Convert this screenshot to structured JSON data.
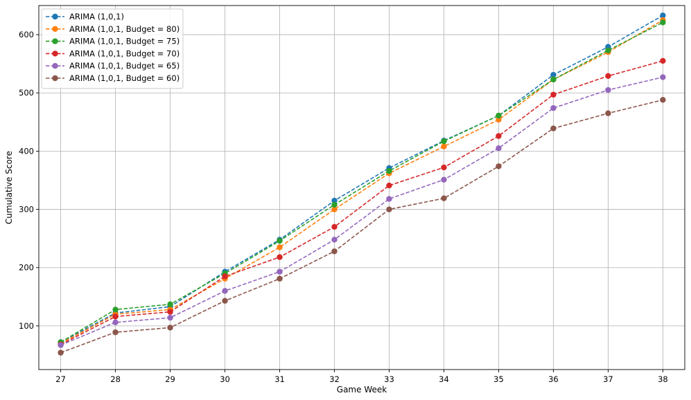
{
  "chart_data": {
    "type": "line",
    "title": "",
    "xlabel": "Game Week",
    "ylabel": "Cumulative Score",
    "x": [
      27,
      28,
      29,
      30,
      31,
      32,
      33,
      34,
      35,
      36,
      37,
      38
    ],
    "xlim": [
      26.6,
      38.4
    ],
    "ylim": [
      25,
      650
    ],
    "yticks": [
      100,
      200,
      300,
      400,
      500,
      600
    ],
    "grid": true,
    "legend_position": "top-left",
    "series": [
      {
        "name": "ARIMA (1,0,1)",
        "color": "#1f77b4",
        "values": [
          72,
          122,
          133,
          193,
          248,
          315,
          371,
          418,
          461,
          531,
          579,
          633
        ]
      },
      {
        "name": "ARIMA (1,0,1, Budget = 80)",
        "color": "#ff7f0e",
        "values": [
          70,
          120,
          128,
          181,
          235,
          300,
          362,
          408,
          454,
          523,
          570,
          625
        ]
      },
      {
        "name": "ARIMA (1,0,1, Budget = 75)",
        "color": "#2ca02c",
        "values": [
          72,
          128,
          137,
          190,
          246,
          308,
          366,
          417,
          461,
          523,
          573,
          621
        ]
      },
      {
        "name": "ARIMA (1,0,1, Budget = 70)",
        "color": "#d62728",
        "values": [
          68,
          116,
          124,
          185,
          218,
          270,
          341,
          372,
          426,
          497,
          529,
          555
        ]
      },
      {
        "name": "ARIMA (1,0,1, Budget = 65)",
        "color": "#9467bd",
        "values": [
          67,
          106,
          114,
          160,
          193,
          248,
          318,
          351,
          405,
          474,
          505,
          527
        ]
      },
      {
        "name": "ARIMA (1,0,1, Budget = 60)",
        "color": "#8c564b",
        "values": [
          54,
          89,
          97,
          143,
          181,
          228,
          300,
          319,
          374,
          439,
          465,
          488
        ]
      }
    ]
  }
}
